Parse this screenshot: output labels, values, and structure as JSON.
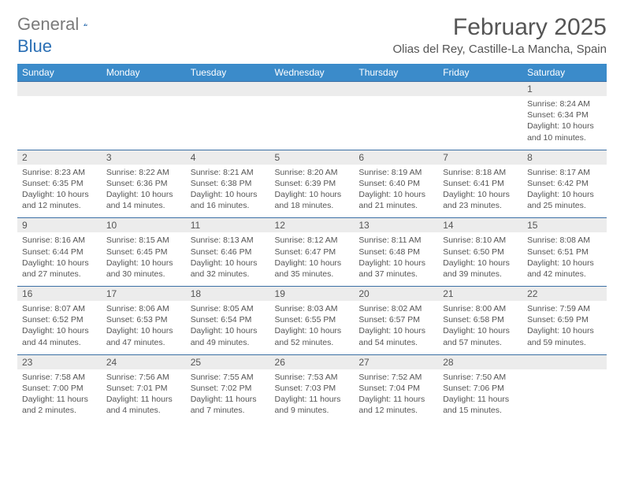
{
  "brand": {
    "part1": "General",
    "part2": "Blue"
  },
  "title": "February 2025",
  "location": "Olias del Rey, Castille-La Mancha, Spain",
  "colors": {
    "header_bg": "#3b8bca",
    "daynum_bg": "#ececec",
    "rule": "#3b6fa5",
    "text": "#555555",
    "brand_blue": "#2a6fb5"
  },
  "dayNames": [
    "Sunday",
    "Monday",
    "Tuesday",
    "Wednesday",
    "Thursday",
    "Friday",
    "Saturday"
  ],
  "weeks": [
    [
      null,
      null,
      null,
      null,
      null,
      null,
      {
        "n": "1",
        "sr": "8:24 AM",
        "ss": "6:34 PM",
        "dl": "10 hours and 10 minutes."
      }
    ],
    [
      {
        "n": "2",
        "sr": "8:23 AM",
        "ss": "6:35 PM",
        "dl": "10 hours and 12 minutes."
      },
      {
        "n": "3",
        "sr": "8:22 AM",
        "ss": "6:36 PM",
        "dl": "10 hours and 14 minutes."
      },
      {
        "n": "4",
        "sr": "8:21 AM",
        "ss": "6:38 PM",
        "dl": "10 hours and 16 minutes."
      },
      {
        "n": "5",
        "sr": "8:20 AM",
        "ss": "6:39 PM",
        "dl": "10 hours and 18 minutes."
      },
      {
        "n": "6",
        "sr": "8:19 AM",
        "ss": "6:40 PM",
        "dl": "10 hours and 21 minutes."
      },
      {
        "n": "7",
        "sr": "8:18 AM",
        "ss": "6:41 PM",
        "dl": "10 hours and 23 minutes."
      },
      {
        "n": "8",
        "sr": "8:17 AM",
        "ss": "6:42 PM",
        "dl": "10 hours and 25 minutes."
      }
    ],
    [
      {
        "n": "9",
        "sr": "8:16 AM",
        "ss": "6:44 PM",
        "dl": "10 hours and 27 minutes."
      },
      {
        "n": "10",
        "sr": "8:15 AM",
        "ss": "6:45 PM",
        "dl": "10 hours and 30 minutes."
      },
      {
        "n": "11",
        "sr": "8:13 AM",
        "ss": "6:46 PM",
        "dl": "10 hours and 32 minutes."
      },
      {
        "n": "12",
        "sr": "8:12 AM",
        "ss": "6:47 PM",
        "dl": "10 hours and 35 minutes."
      },
      {
        "n": "13",
        "sr": "8:11 AM",
        "ss": "6:48 PM",
        "dl": "10 hours and 37 minutes."
      },
      {
        "n": "14",
        "sr": "8:10 AM",
        "ss": "6:50 PM",
        "dl": "10 hours and 39 minutes."
      },
      {
        "n": "15",
        "sr": "8:08 AM",
        "ss": "6:51 PM",
        "dl": "10 hours and 42 minutes."
      }
    ],
    [
      {
        "n": "16",
        "sr": "8:07 AM",
        "ss": "6:52 PM",
        "dl": "10 hours and 44 minutes."
      },
      {
        "n": "17",
        "sr": "8:06 AM",
        "ss": "6:53 PM",
        "dl": "10 hours and 47 minutes."
      },
      {
        "n": "18",
        "sr": "8:05 AM",
        "ss": "6:54 PM",
        "dl": "10 hours and 49 minutes."
      },
      {
        "n": "19",
        "sr": "8:03 AM",
        "ss": "6:55 PM",
        "dl": "10 hours and 52 minutes."
      },
      {
        "n": "20",
        "sr": "8:02 AM",
        "ss": "6:57 PM",
        "dl": "10 hours and 54 minutes."
      },
      {
        "n": "21",
        "sr": "8:00 AM",
        "ss": "6:58 PM",
        "dl": "10 hours and 57 minutes."
      },
      {
        "n": "22",
        "sr": "7:59 AM",
        "ss": "6:59 PM",
        "dl": "10 hours and 59 minutes."
      }
    ],
    [
      {
        "n": "23",
        "sr": "7:58 AM",
        "ss": "7:00 PM",
        "dl": "11 hours and 2 minutes."
      },
      {
        "n": "24",
        "sr": "7:56 AM",
        "ss": "7:01 PM",
        "dl": "11 hours and 4 minutes."
      },
      {
        "n": "25",
        "sr": "7:55 AM",
        "ss": "7:02 PM",
        "dl": "11 hours and 7 minutes."
      },
      {
        "n": "26",
        "sr": "7:53 AM",
        "ss": "7:03 PM",
        "dl": "11 hours and 9 minutes."
      },
      {
        "n": "27",
        "sr": "7:52 AM",
        "ss": "7:04 PM",
        "dl": "11 hours and 12 minutes."
      },
      {
        "n": "28",
        "sr": "7:50 AM",
        "ss": "7:06 PM",
        "dl": "11 hours and 15 minutes."
      },
      null
    ]
  ],
  "labels": {
    "sunrise": "Sunrise:",
    "sunset": "Sunset:",
    "daylight": "Daylight:"
  }
}
